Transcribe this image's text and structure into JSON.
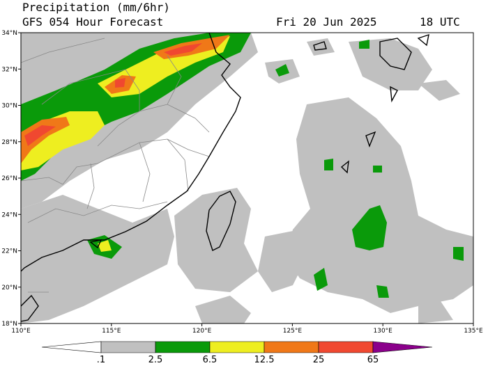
{
  "header": {
    "title": "Precipitation (mm/6hr)",
    "subtitle": "GFS 054 Hour Forecast",
    "date": "Fri 20 Jun 2025",
    "time": "18 UTC"
  },
  "map": {
    "lat_labels": [
      "34°N",
      "32°N",
      "30°N",
      "28°N",
      "26°N",
      "24°N",
      "22°N",
      "20°N",
      "18°N"
    ],
    "lon_labels": [
      "110°E",
      "115°E",
      "120°E",
      "125°E",
      "130°E",
      "135°E"
    ]
  },
  "colorbar": {
    "colors": [
      "#ffffff",
      "#c0c0c0",
      "#0a9a0a",
      "#eeee20",
      "#f07818",
      "#f04830",
      "#8b008b"
    ],
    "labels": [
      ".1",
      "2.5",
      "6.5",
      "12.5",
      "25",
      "65"
    ]
  }
}
